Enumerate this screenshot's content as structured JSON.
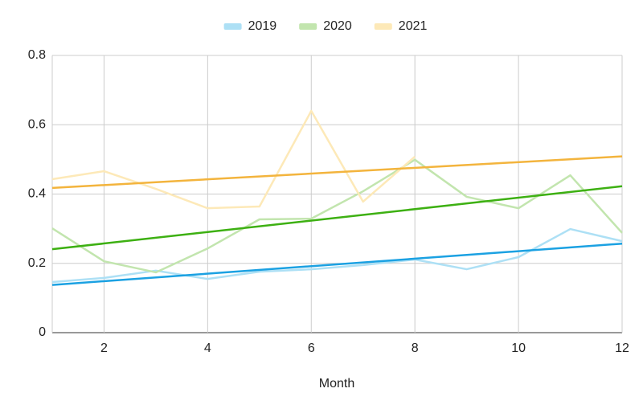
{
  "chart_data": {
    "type": "line",
    "x_label": "Month",
    "x": [
      1,
      2,
      3,
      4,
      5,
      6,
      7,
      8,
      9,
      10,
      11,
      12
    ],
    "series": [
      {
        "name": "2019",
        "color": "#ade0f5",
        "trend_color": "#1ba1e2",
        "values": [
          0.146,
          0.158,
          0.179,
          0.155,
          0.176,
          0.183,
          0.195,
          0.211,
          0.183,
          0.218,
          0.299,
          0.264
        ]
      },
      {
        "name": "2020",
        "color": "#c2e5ae",
        "trend_color": "#3db012",
        "values": [
          0.301,
          0.206,
          0.174,
          0.243,
          0.327,
          0.329,
          0.408,
          0.499,
          0.392,
          0.359,
          0.454,
          0.288
        ]
      },
      {
        "name": "2021",
        "color": "#fde9b8",
        "trend_color": "#f3b43d",
        "values": [
          0.443,
          0.466,
          0.415,
          0.359,
          0.364,
          0.64,
          0.378,
          0.508,
          null,
          null,
          null,
          null
        ]
      }
    ],
    "trendline": true,
    "xlim": [
      1,
      12
    ],
    "xticks": [
      2,
      4,
      6,
      8,
      10,
      12
    ],
    "ylim": [
      0,
      0.8
    ],
    "yticks": [
      0,
      0.2,
      0.4,
      0.6,
      0.8
    ],
    "grid": true,
    "legend": "top"
  }
}
